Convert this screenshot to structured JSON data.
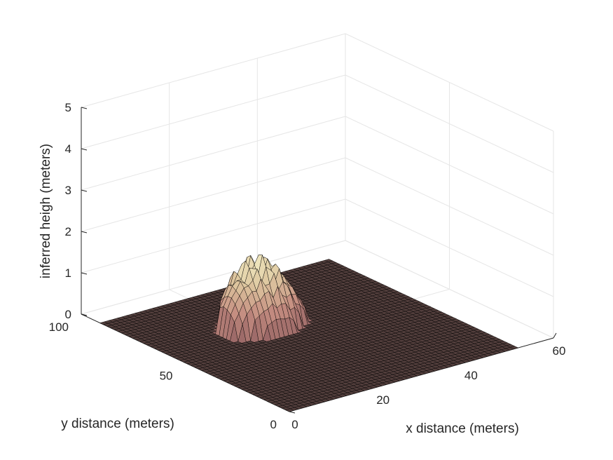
{
  "chart_data": {
    "type": "surface",
    "title": "",
    "xlabel": "x distance (meters)",
    "ylabel": "y distance (meters)",
    "zlabel": "inferred heigh (meters)",
    "xlim": [
      0,
      60
    ],
    "ylim": [
      0,
      100
    ],
    "zlim": [
      0,
      5
    ],
    "xticks": [
      "0",
      "20",
      "40",
      "60"
    ],
    "yticks": [
      "0",
      "50",
      "100"
    ],
    "zticks": [
      "0",
      "1",
      "2",
      "3",
      "4",
      "5"
    ],
    "grid": true,
    "colormap": "pink",
    "surface_extent": {
      "x": [
        0,
        52
      ],
      "y": [
        0,
        91
      ]
    },
    "mound": {
      "x_range": [
        13,
        31
      ],
      "y_range": [
        50,
        70
      ],
      "peak_height": 1.8,
      "base_height": 0.2,
      "peak_x": 21,
      "peak_y": 62
    }
  }
}
